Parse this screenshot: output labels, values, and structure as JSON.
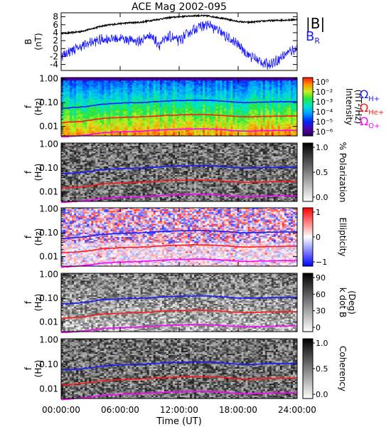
{
  "chart_data": {
    "type": "line",
    "title": "ACE Mag 2002-095",
    "xlabel": "Time (UT)",
    "x_ticks": [
      "00:00:00",
      "06:00:00",
      "12:00:00",
      "18:00:00",
      "24:00:00"
    ],
    "xlim_hours": [
      0,
      24
    ],
    "panels": [
      {
        "kind": "line",
        "ylabel_main": "B",
        "ylabel_unit": "(nT)",
        "ylim": [
          -5.5,
          9
        ],
        "y_ticks": [
          "-4",
          "-2",
          "0",
          "2",
          "4",
          "6",
          "8"
        ],
        "y_tick_values": [
          -4,
          -2,
          0,
          2,
          4,
          6,
          8
        ],
        "legend": [
          {
            "label": "|B|",
            "color": "#000000"
          },
          {
            "label": "B",
            "sub": "R",
            "color": "#1a1aff"
          }
        ],
        "series": [
          {
            "name": "|B|",
            "color": "#000000",
            "x": [
              0,
              1,
              2,
              3,
              4,
              5,
              6,
              7,
              8,
              9,
              10,
              11,
              12,
              13,
              14,
              15,
              16,
              17,
              18,
              19,
              20,
              21,
              22,
              23,
              24
            ],
            "y": [
              3.8,
              4.0,
              4.3,
              4.9,
              5.6,
              6.0,
              6.3,
              6.5,
              6.6,
              7.0,
              7.4,
              7.8,
              8.0,
              8.2,
              8.3,
              8.2,
              7.8,
              7.3,
              6.8,
              6.6,
              6.8,
              7.0,
              7.1,
              7.2,
              7.3
            ]
          },
          {
            "name": "B",
            "sub": "R",
            "color": "#1a1aff",
            "x": [
              0,
              1,
              2,
              3,
              4,
              5,
              6,
              7,
              8,
              9,
              10,
              11,
              12,
              13,
              14,
              15,
              16,
              17,
              18,
              19,
              20,
              21,
              22,
              23,
              24
            ],
            "y": [
              -2.0,
              -0.5,
              0.5,
              1.5,
              2.2,
              2.5,
              2.6,
              2.2,
              1.8,
              3.5,
              1.0,
              3.0,
              2.0,
              4.0,
              5.5,
              6.0,
              4.5,
              2.5,
              1.0,
              -1.5,
              -3.0,
              -4.0,
              -3.0,
              -1.0,
              0.0
            ]
          }
        ]
      },
      {
        "kind": "spectrogram",
        "name": "Intensity",
        "ylabel_main": "f",
        "ylabel_unit": "(Hz)",
        "y_ticks": [
          "1.00",
          "0.10",
          "0.01"
        ],
        "y_tick_values": [
          1.0,
          0.1,
          0.01
        ],
        "cbar_title": "Intensity",
        "cbar_unit": "(nT²/Hz)",
        "cbar_ticks": [
          "10⁰",
          "10⁻²",
          "10⁻³",
          "10⁻⁴",
          "10⁻⁵",
          "10⁻⁶"
        ],
        "legend": [
          {
            "label": "Ω",
            "sub": "H+",
            "color": "#1a1aff"
          },
          {
            "label": "Ω",
            "sub": "He+",
            "color": "#ff1a1a"
          },
          {
            "label": "Ω",
            "sub": "O+",
            "color": "#ff00ff"
          }
        ]
      },
      {
        "kind": "spectrogram",
        "name": "Polarization",
        "ylabel_main": "f",
        "ylabel_unit": "(Hz)",
        "y_ticks": [
          "1.00",
          "0.10",
          "0.01"
        ],
        "y_tick_values": [
          1.0,
          0.1,
          0.01
        ],
        "cbar_title": "% Polarization",
        "cbar_ticks": [
          "1.0",
          "0.5",
          "0.0"
        ]
      },
      {
        "kind": "spectrogram",
        "name": "Ellipticity",
        "ylabel_main": "f",
        "ylabel_unit": "(Hz)",
        "y_ticks": [
          "1.00",
          "0.10",
          "0.01"
        ],
        "y_tick_values": [
          1.0,
          0.1,
          0.01
        ],
        "cbar_title": "Ellipticity",
        "cbar_ticks": [
          "1",
          "0",
          "−1"
        ]
      },
      {
        "kind": "spectrogram",
        "name": "k dot B",
        "ylabel_main": "f",
        "ylabel_unit": "(Hz)",
        "y_ticks": [
          "1.00",
          "0.10",
          "0.01"
        ],
        "y_tick_values": [
          1.0,
          0.1,
          0.01
        ],
        "cbar_title": "k dot B",
        "cbar_unit": "(Deg)",
        "cbar_ticks": [
          "90",
          "60",
          "30",
          "0"
        ]
      },
      {
        "kind": "spectrogram",
        "name": "Coherency",
        "ylabel_main": "f",
        "ylabel_unit": "(Hz)",
        "y_ticks": [
          "1.00",
          "0.10",
          "0.01"
        ],
        "y_tick_values": [
          1.0,
          0.1,
          0.01
        ],
        "cbar_title": "Coherency",
        "cbar_ticks": [
          "1.0",
          "0.5",
          "0.0"
        ]
      }
    ],
    "gyrofrequencies": [
      {
        "name": "H+",
        "color": "#1a1aff",
        "x": [
          0,
          1,
          2,
          3,
          4,
          5,
          6,
          7,
          8,
          9,
          10,
          11,
          12,
          13,
          14,
          15,
          16,
          17,
          18,
          19,
          20,
          21,
          22,
          23,
          24
        ],
        "y": [
          0.058,
          0.061,
          0.065,
          0.072,
          0.085,
          0.09,
          0.095,
          0.098,
          0.1,
          0.105,
          0.112,
          0.118,
          0.121,
          0.124,
          0.126,
          0.124,
          0.118,
          0.11,
          0.103,
          0.1,
          0.103,
          0.106,
          0.108,
          0.109,
          0.11
        ]
      },
      {
        "name": "He+",
        "color": "#ff1a1a",
        "x": [
          0,
          1,
          2,
          3,
          4,
          5,
          6,
          7,
          8,
          9,
          10,
          11,
          12,
          13,
          14,
          15,
          16,
          17,
          18,
          19,
          20,
          21,
          22,
          23,
          24
        ],
        "y": [
          0.0145,
          0.0152,
          0.0162,
          0.018,
          0.0212,
          0.0225,
          0.0237,
          0.0245,
          0.025,
          0.0262,
          0.028,
          0.0295,
          0.0302,
          0.031,
          0.0315,
          0.031,
          0.0295,
          0.0275,
          0.0258,
          0.025,
          0.0258,
          0.0265,
          0.027,
          0.0272,
          0.0275
        ]
      },
      {
        "name": "O+",
        "color": "#ff00ff",
        "x": [
          0,
          1,
          2,
          3,
          4,
          5,
          6,
          7,
          8,
          9,
          10,
          11,
          12,
          13,
          14,
          15,
          16,
          17,
          18,
          19,
          20,
          21,
          22,
          23,
          24
        ],
        "y": [
          0.0036,
          0.0038,
          0.0041,
          0.0045,
          0.0053,
          0.0056,
          0.0059,
          0.0061,
          0.0062,
          0.0066,
          0.007,
          0.0074,
          0.0076,
          0.0078,
          0.0079,
          0.0078,
          0.0074,
          0.0069,
          0.0065,
          0.0062,
          0.0065,
          0.0066,
          0.0068,
          0.0068,
          0.0069
        ]
      }
    ]
  }
}
